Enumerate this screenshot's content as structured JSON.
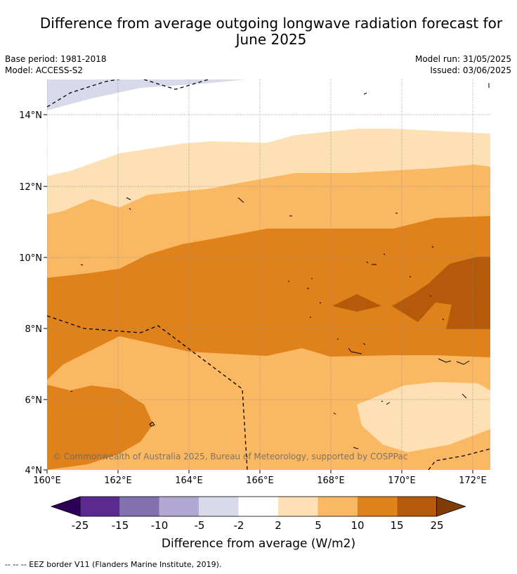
{
  "title_line1": "Difference from average outgoing longwave radiation forecast for",
  "title_line2": "June 2025",
  "meta": {
    "base_period": "Base period: 1981-2018",
    "model": "Model: ACCESS-S2",
    "model_run": "Model run: 31/05/2025",
    "issued": "Issued: 03/06/2025"
  },
  "map": {
    "lat_labels": [
      "14°N",
      "12°N",
      "10°N",
      "8°N",
      "6°N",
      "4°N"
    ],
    "lon_labels": [
      "160°E",
      "162°E",
      "164°E",
      "166°E",
      "168°E",
      "170°E",
      "172°E"
    ],
    "lon_range": [
      160,
      172.5
    ],
    "lat_range": [
      4,
      15
    ],
    "copyright": "© Commonwealth of Australia 2025, Bureau of Meteorology, supported by COSPPac"
  },
  "colorbar": {
    "colors": [
      "#2d0057",
      "#5b2a8f",
      "#8370b0",
      "#b1a8d3",
      "#d9d9ec",
      "#ffffff",
      "#fde0b4",
      "#fbb863",
      "#e0821c",
      "#b45a0a",
      "#7f3b08"
    ],
    "tick_labels": [
      "-25",
      "-15",
      "-10",
      "-5",
      "-2",
      "2",
      "5",
      "10",
      "15",
      "25"
    ],
    "label": "Difference from average (W/m2)"
  },
  "footer": "--  --  -- EEZ border V11 (Flanders Marine Institute, 2019)."
}
